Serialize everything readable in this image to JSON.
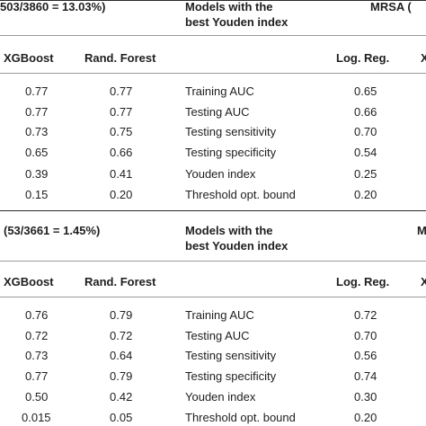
{
  "sections": [
    {
      "title_left": "503/3860 = 13.03%)",
      "title_mid_line1": "Models with the",
      "title_mid_line2": "best Youden index",
      "title_right": "MRSA (",
      "headers": {
        "xgb": "XGBoost",
        "rf": "Rand. Forest",
        "lr": "Log. Reg.",
        "edge": "X"
      },
      "rows": [
        {
          "xgb": "0.77",
          "rf": "0.77",
          "metric": "Training AUC",
          "lr": "0.65"
        },
        {
          "xgb": "0.77",
          "rf": "0.77",
          "metric": "Testing AUC",
          "lr": "0.66"
        },
        {
          "xgb": "0.73",
          "rf": "0.75",
          "metric": "Testing sensitivity",
          "lr": "0.70"
        },
        {
          "xgb": "0.65",
          "rf": "0.66",
          "metric": "Testing specificity",
          "lr": "0.54"
        },
        {
          "xgb": "0.39",
          "rf": "0.41",
          "metric": "Youden index",
          "lr": "0.25"
        },
        {
          "xgb": "0.15",
          "rf": "0.20",
          "metric": "Threshold opt. bound",
          "lr": "0.20"
        }
      ]
    },
    {
      "title_left": "(53/3661 = 1.45%)",
      "title_mid_line1": "Models with the",
      "title_mid_line2": "best Youden index",
      "title_right": "M",
      "headers": {
        "xgb": "XGBoost",
        "rf": "Rand. Forest",
        "lr": "Log. Reg.",
        "edge": "X"
      },
      "rows": [
        {
          "xgb": "0.76",
          "rf": "0.79",
          "metric": "Training AUC",
          "lr": "0.72"
        },
        {
          "xgb": "0.72",
          "rf": "0.72",
          "metric": "Testing AUC",
          "lr": "0.70"
        },
        {
          "xgb": "0.73",
          "rf": "0.64",
          "metric": "Testing sensitivity",
          "lr": "0.56"
        },
        {
          "xgb": "0.77",
          "rf": "0.79",
          "metric": "Testing specificity",
          "lr": "0.74"
        },
        {
          "xgb": "0.50",
          "rf": "0.42",
          "metric": "Youden index",
          "lr": "0.30"
        },
        {
          "xgb": "0.015",
          "rf": "0.05",
          "metric": "Threshold opt. bound",
          "lr": "0.20"
        }
      ]
    }
  ]
}
